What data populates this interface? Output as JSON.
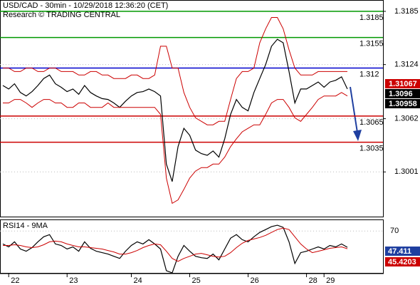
{
  "chart_data": {
    "type": "line",
    "title": "USD/CAD - 30min - 10/29/2018 12:36:20 (CET)",
    "subtitle": "Research © TRADING CENTRAL",
    "categories": [
      null,
      "22",
      null,
      null,
      null,
      null,
      null,
      null,
      null,
      null,
      null,
      "23",
      null,
      null,
      null,
      null,
      null,
      null,
      null,
      null,
      null,
      null,
      "24",
      null,
      null,
      null,
      null,
      null,
      null,
      null,
      null,
      null,
      "25",
      null,
      null,
      null,
      null,
      null,
      null,
      null,
      null,
      null,
      "26",
      null,
      null,
      null,
      null,
      null,
      null,
      null,
      null,
      null,
      "28",
      null,
      null,
      "29",
      null,
      null,
      null,
      null
    ],
    "series": [
      {
        "color": "#000000",
        "values": [
          1.31,
          1.3096,
          1.3102,
          1.3092,
          1.3088,
          1.3093,
          1.31,
          1.3108,
          1.3112,
          1.3102,
          1.3098,
          1.3093,
          1.3096,
          1.309,
          1.31,
          1.3092,
          1.3088,
          1.3085,
          1.3084,
          1.308,
          1.3075,
          1.3082,
          1.3088,
          1.3092,
          1.3093,
          1.3096,
          1.3093,
          1.3088,
          1.301,
          1.299,
          1.303,
          1.3051,
          1.3043,
          1.3026,
          1.3022,
          1.302,
          1.3025,
          1.3018,
          1.3039,
          1.3067,
          1.3084,
          1.3075,
          1.3071,
          1.3092,
          1.3108,
          1.3124,
          1.3145,
          1.3153,
          1.3149,
          1.3116,
          1.308,
          1.3096,
          1.3096,
          1.31,
          1.3104,
          1.3098,
          1.3104,
          1.3106,
          1.311,
          1.3096
        ]
      },
      {
        "color": "#cc0000",
        "values": [
          1.312,
          1.312,
          1.3116,
          1.3116,
          1.312,
          1.312,
          1.3116,
          1.3116,
          1.312,
          1.312,
          1.3116,
          1.3116,
          1.3116,
          1.3112,
          1.3112,
          1.3116,
          1.3116,
          1.3112,
          1.3112,
          1.3108,
          1.3108,
          1.3108,
          1.3112,
          1.3112,
          1.3108,
          1.3108,
          1.3112,
          1.3145,
          1.3145,
          1.312,
          1.312,
          1.3092,
          1.3075,
          1.3063,
          1.3059,
          1.3055,
          1.3055,
          1.3059,
          1.3059,
          1.3084,
          1.3108,
          1.3116,
          1.3116,
          1.312,
          1.3149,
          1.3165,
          1.3178,
          1.3178,
          1.3165,
          1.3141,
          1.312,
          1.3112,
          1.3112,
          1.3112,
          1.3116,
          1.3116,
          1.3116,
          1.3116,
          1.3116,
          1.3116
        ]
      },
      {
        "color": "#cc0000",
        "values": [
          1.308,
          1.308,
          1.3084,
          1.3084,
          1.308,
          1.3075,
          1.308,
          1.3084,
          1.3084,
          1.308,
          1.308,
          1.3075,
          1.3075,
          1.308,
          1.308,
          1.3075,
          1.3075,
          1.3075,
          1.308,
          1.3075,
          1.3075,
          1.3075,
          1.3075,
          1.3075,
          1.3075,
          1.3075,
          1.3075,
          1.3067,
          1.2994,
          1.2965,
          1.2969,
          1.2981,
          1.2994,
          1.3002,
          1.3006,
          1.3006,
          1.301,
          1.301,
          1.3018,
          1.303,
          1.3039,
          1.3047,
          1.3051,
          1.3055,
          1.3055,
          1.3067,
          1.308,
          1.3084,
          1.3084,
          1.3075,
          1.3063,
          1.3059,
          1.3067,
          1.3075,
          1.3084,
          1.3088,
          1.3088,
          1.3088,
          1.3092,
          1.3088
        ]
      }
    ],
    "ylim": [
      1.2949,
      1.3198
    ],
    "yticks": [
      1.3185,
      1.3124,
      1.3062,
      1.3001
    ],
    "grid": true,
    "levels": [
      {
        "value": 1.3185,
        "color": "#009900"
      },
      {
        "value": 1.3155,
        "color": "#009900"
      },
      {
        "value": 1.312,
        "color": "#0000cc"
      },
      {
        "value": 1.3065,
        "color": "#cc0000"
      },
      {
        "value": 1.3035,
        "color": "#cc0000"
      }
    ],
    "price_markers": [
      {
        "value": 1.31067,
        "color": "#cc0000"
      },
      {
        "value": 1.3096,
        "color": "#000000"
      },
      {
        "value": 1.30958,
        "color": "#000000"
      }
    ],
    "rsi": {
      "title": "RSI14 - 9MA",
      "ylim": [
        11,
        85
      ],
      "yticks": [
        70
      ],
      "series": [
        {
          "color": "#000000",
          "values": [
            52,
            48,
            55,
            45,
            42,
            47,
            55,
            62,
            65,
            52,
            50,
            45,
            48,
            42,
            55,
            46,
            42,
            40,
            38,
            35,
            32,
            42,
            50,
            55,
            52,
            58,
            52,
            45,
            15,
            12,
            35,
            50,
            42,
            35,
            33,
            32,
            38,
            30,
            45,
            60,
            65,
            58,
            55,
            62,
            68,
            72,
            76,
            78,
            75,
            55,
            25,
            40,
            42,
            45,
            48,
            45,
            50,
            48,
            52,
            47.411
          ]
        },
        {
          "color": "#cc0000",
          "values": [
            50,
            50,
            51,
            50,
            48,
            47,
            48,
            51,
            55,
            56,
            55,
            52,
            50,
            48,
            48,
            47,
            46,
            45,
            43,
            41,
            38,
            38,
            40,
            43,
            47,
            50,
            52,
            51,
            42,
            32,
            28,
            32,
            35,
            38,
            39,
            37,
            35,
            34,
            35,
            40,
            47,
            53,
            57,
            59,
            61,
            64,
            68,
            72,
            74,
            72,
            62,
            52,
            45,
            40,
            42,
            44,
            46,
            47,
            48,
            45.4203
          ]
        }
      ]
    }
  }
}
